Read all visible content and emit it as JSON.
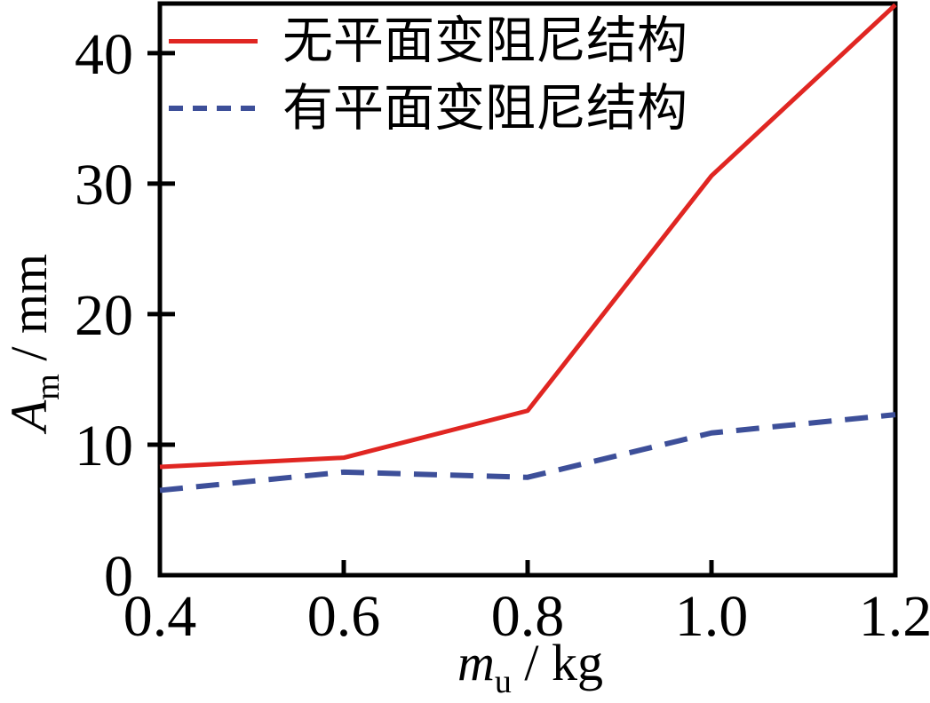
{
  "chart_data": {
    "type": "line",
    "title": "",
    "x": [
      0.4,
      0.6,
      0.8,
      1.0,
      1.2
    ],
    "series": [
      {
        "name": "无平面变阻尼结构",
        "values": [
          8.3,
          9.0,
          12.6,
          30.6,
          43.7
        ],
        "color": "#e02622",
        "style": "solid"
      },
      {
        "name": "有平面变阻尼结构",
        "values": [
          6.5,
          7.9,
          7.5,
          10.9,
          12.3
        ],
        "color": "#3d4f99",
        "style": "dashed"
      }
    ],
    "xlabel": "m_u / kg",
    "ylabel": "A_m / mm",
    "xlabel_parts": {
      "main": "m",
      "sub": "u",
      "unit": " / kg"
    },
    "ylabel_parts": {
      "main": "A",
      "sub": "m",
      "unit": " / mm"
    },
    "xlim": [
      0.4,
      1.2
    ],
    "ylim": [
      0,
      43.8
    ],
    "xticks": [
      0.4,
      0.6,
      0.8,
      1.0,
      1.2
    ],
    "xtick_labels": [
      "0.4",
      "0.6",
      "0.8",
      "1.0",
      "1.2"
    ],
    "yticks": [
      0,
      10,
      20,
      30,
      40
    ],
    "ytick_labels": [
      "0",
      "10",
      "20",
      "30",
      "40"
    ],
    "grid": false,
    "legend_position": "top-left"
  },
  "colors": {
    "axis": "#000000",
    "text": "#000000",
    "background": "#ffffff",
    "series_red": "#e02622",
    "series_blue": "#3d4f99"
  }
}
